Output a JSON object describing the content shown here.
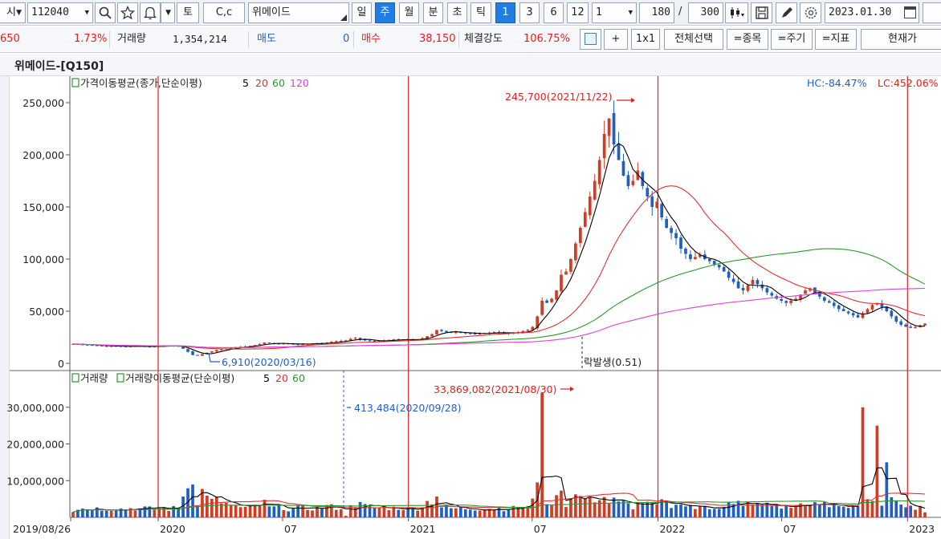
{
  "toolbar": {
    "market_label": "시",
    "code_value": "112040",
    "name_value": "위메이드",
    "period_buttons": [
      "일",
      "주",
      "월",
      "분",
      "초",
      "틱"
    ],
    "active_period": "주",
    "multipliers": [
      "1",
      "3",
      "6",
      "12"
    ],
    "active_multiplier": "1",
    "unit_value": "1",
    "count_value": "180",
    "slash": "/",
    "total_value": "300",
    "date_value": "2023.01.30",
    "to_label": "토",
    "cc_label": "C,c"
  },
  "quote": {
    "price_fragment": "650",
    "change_pct": "1.73%",
    "volume_label": "거래량",
    "volume_value": "1,354,214",
    "sell_label": "매도",
    "sell_value": "0",
    "buy_label": "매수",
    "buy_value": "38,150",
    "strength_label": "체결강도",
    "strength_value": "106.75%",
    "plus_label": "+",
    "scale_label": "1x1",
    "select_all_label": "전체선택",
    "stock_label": "=종목",
    "period_label": "=주기",
    "indicator_label": "=지표",
    "current_price_label": "현재가"
  },
  "chart_title": "위메이드-[Q150]",
  "price_panel": {
    "legend_title": "가격이동평균(종가,단순이평)",
    "ma_periods": [
      "5",
      "20",
      "60",
      "120"
    ],
    "hc_label": "HC:-84.47%",
    "lc_label": "LC:452.06%",
    "high_annotation": "245,700(2021/11/22)",
    "low_annotation": "6,910(2020/03/16)",
    "event_annotation": "락발생(0.51)"
  },
  "volume_panel": {
    "legend_vol": "거래량",
    "legend_title": "거래량이동평균(단순이평)",
    "ma_periods": [
      "5",
      "20",
      "60"
    ],
    "high_annotation": "33,869,082(2021/08/30)",
    "low_annotation": "413,484(2020/09/28)"
  },
  "colors": {
    "up": "#d23c22",
    "down": "#1e5fc4",
    "ma5": "#000000",
    "ma20": "#e23030",
    "ma60": "#2a9a2a",
    "ma120": "#e040e0",
    "divider": "#e02020"
  },
  "chart_data": [
    {
      "type": "candlestick",
      "title": "위메이드-[Q150]",
      "series_names": [
        "5",
        "20",
        "60",
        "120"
      ],
      "ylim": [
        0,
        260000
      ],
      "y_ticks": [
        0,
        50000,
        100000,
        150000,
        200000,
        250000
      ],
      "y_tick_labels": [
        "0",
        "50,000",
        "100,000",
        "150,000",
        "200,000",
        "250,000"
      ],
      "x_tick_labels": [
        "2019/08/26",
        "2020",
        "07",
        "2021",
        "07",
        "2022",
        "07",
        "2023"
      ],
      "x_tick_dates": [
        "2019-08-26",
        "2020-01-01",
        "2020-07-01",
        "2021-01-01",
        "2021-07-01",
        "2022-01-01",
        "2022-07-01",
        "2023-01-01"
      ],
      "x_range": [
        "2019-08-26",
        "2023-01-30"
      ],
      "closes_weekly": [
        18500,
        18200,
        17900,
        17600,
        17300,
        17000,
        16800,
        16500,
        16700,
        16400,
        16200,
        16000,
        16300,
        16600,
        16400,
        16100,
        15900,
        16200,
        16500,
        16800,
        17000,
        16700,
        16400,
        14000,
        11000,
        8000,
        7500,
        9000,
        10200,
        11500,
        12800,
        13500,
        14200,
        15000,
        15600,
        16000,
        16300,
        16800,
        17500,
        18500,
        20000,
        19500,
        19000,
        18500,
        19000,
        18800,
        18500,
        18200,
        18500,
        18800,
        19200,
        19500,
        19000,
        19800,
        20500,
        21000,
        21500,
        22000,
        23500,
        24500,
        23000,
        22000,
        21500,
        21000,
        21500,
        22000,
        22500,
        23000,
        22500,
        23000,
        22800,
        22500,
        23000,
        24000,
        26000,
        28000,
        32000,
        31000,
        30000,
        29500,
        30000,
        29500,
        29000,
        28500,
        28000,
        28500,
        29000,
        29500,
        30000,
        29500,
        29000,
        28500,
        29000,
        30000,
        31000,
        32000,
        35000,
        45000,
        60000,
        58000,
        62000,
        70000,
        85000,
        88000,
        100000,
        115000,
        130000,
        145000,
        160000,
        175000,
        195000,
        220000,
        235000,
        210000,
        195000,
        180000,
        170000,
        175000,
        185000,
        170000,
        160000,
        150000,
        155000,
        140000,
        130000,
        125000,
        120000,
        110000,
        105000,
        100000,
        102000,
        104000,
        100000,
        98000,
        95000,
        92000,
        88000,
        82000,
        78000,
        72000,
        70000,
        75000,
        80000,
        76000,
        72000,
        68000,
        65000,
        62000,
        60000,
        58000,
        60000,
        62000,
        66000,
        70000,
        72000,
        68000,
        64000,
        60000,
        58000,
        55000,
        52000,
        50000,
        48000,
        46000,
        44000,
        48000,
        52000,
        56000,
        58000,
        54000,
        50000,
        45000,
        40000,
        37000,
        35000,
        34000,
        35000,
        36500,
        38150
      ]
    },
    {
      "type": "bar",
      "title": "거래량",
      "series_names": [
        "5",
        "20",
        "60"
      ],
      "ylim": [
        0,
        40000000
      ],
      "y_ticks": [
        10000000,
        20000000,
        30000000
      ],
      "y_tick_labels": [
        "10,000,000",
        "20,000,000",
        "30,000,000"
      ],
      "x_tick_labels": [
        "2019/08/26",
        "2020",
        "07",
        "2021",
        "07",
        "2022",
        "07",
        "2023"
      ],
      "max_volume": 33869082,
      "max_volume_date": "2021-08-30",
      "min_volume": 413484,
      "min_volume_date": "2020-09-28",
      "last_volume": 1354214
    }
  ]
}
